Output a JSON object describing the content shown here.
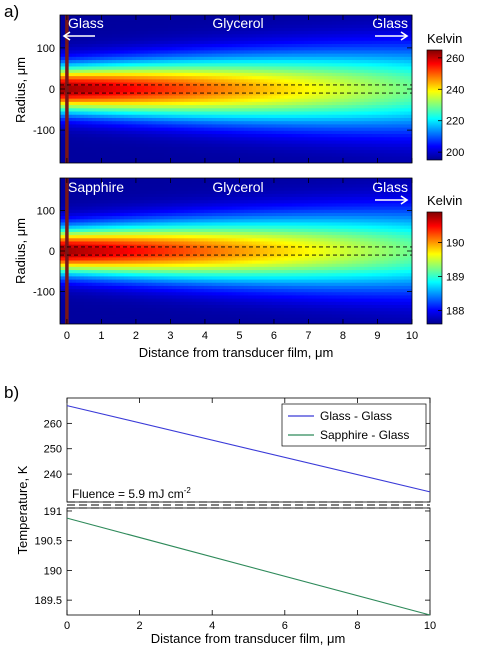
{
  "panels": {
    "a_label": "a)",
    "b_label": "b)"
  },
  "chart_data": [
    {
      "type": "heatmap",
      "panel": "a",
      "ylabel": "Radius, μm",
      "xlim": [
        -0.2,
        10
      ],
      "ylim": [
        -180,
        180
      ],
      "yticks": [
        -100,
        0,
        100
      ],
      "yticklabels": [
        "-100",
        "0",
        "100"
      ],
      "region_labels": [
        "Glass",
        "Glycerol",
        "Glass"
      ],
      "colorbar": {
        "title": "Kelvin",
        "ticks": [
          200,
          220,
          240,
          260
        ],
        "range": [
          195,
          265
        ]
      },
      "beam_lines_radius": [
        10,
        -10
      ],
      "max_temperature_K": 265,
      "colormap": "jet"
    },
    {
      "type": "heatmap",
      "panel": "a-lower",
      "ylabel": "Radius, μm",
      "xlabel": "Distance from transducer film, μm",
      "xlim": [
        -0.2,
        10
      ],
      "ylim": [
        -180,
        180
      ],
      "xticks": [
        0,
        1,
        2,
        3,
        4,
        5,
        6,
        7,
        8,
        9,
        10
      ],
      "yticks": [
        -100,
        0,
        100
      ],
      "yticklabels": [
        "-100",
        "0",
        "100"
      ],
      "region_labels": [
        "Sapphire",
        "Glycerol",
        "Glass"
      ],
      "colorbar": {
        "title": "Kelvin",
        "ticks": [
          188,
          189,
          190
        ],
        "range": [
          187.6,
          190.9
        ]
      },
      "beam_lines_radius": [
        10,
        -10
      ],
      "colormap": "jet"
    },
    {
      "type": "line",
      "panel": "b",
      "xlabel": "Distance from transducer film, μm",
      "ylabel": "Temperature, K",
      "xlim": [
        0,
        10
      ],
      "xticks": [
        0,
        2,
        4,
        6,
        8,
        10
      ],
      "upper_axis": {
        "yticks": [
          240,
          250,
          260
        ],
        "yticklabels": [
          "240",
          "250",
          "260"
        ]
      },
      "lower_axis": {
        "yticks": [
          189.5,
          190,
          190.5,
          191
        ],
        "yticklabels": [
          "189.5",
          "190",
          "190.5",
          "191"
        ]
      },
      "axis_break": true,
      "annotation": "Fluence = 5.9 mJ cm",
      "annotation_exponent": "-2",
      "legend": "top-right",
      "series": [
        {
          "name": "Glass - Glass",
          "color": "#3a3ad8",
          "x": [
            0,
            10
          ],
          "y": [
            267,
            233
          ]
        },
        {
          "name": "Sapphire - Glass",
          "color": "#2e8a5a",
          "x": [
            0,
            10
          ],
          "y": [
            190.88,
            189.25
          ]
        }
      ]
    }
  ]
}
